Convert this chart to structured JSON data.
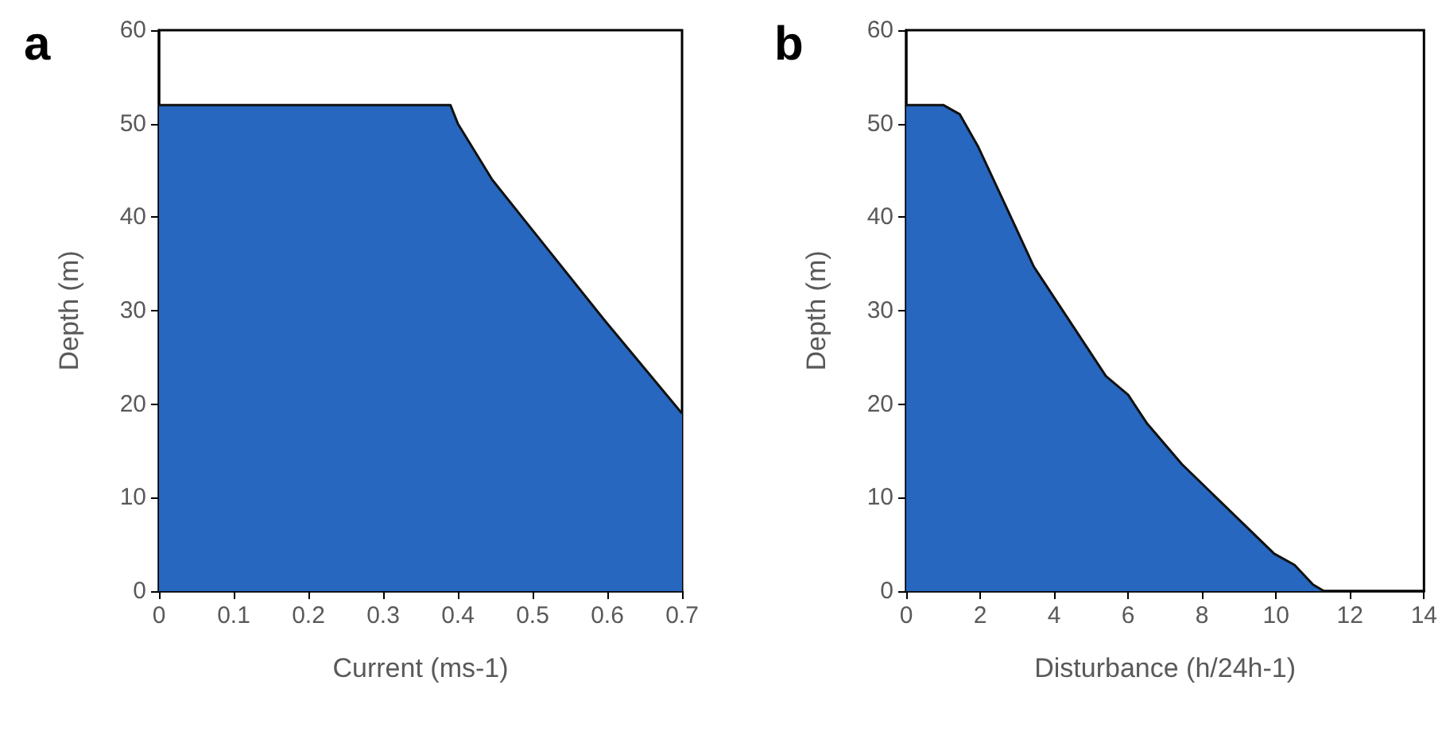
{
  "chart_data": [
    {
      "type": "area",
      "title": "a",
      "xlabel": "Current (ms-1)",
      "ylabel": "Depth (m)",
      "xlim": [
        0,
        0.7
      ],
      "xticks": [
        0,
        0.1,
        0.2,
        0.3,
        0.4,
        0.5,
        0.6,
        0.7
      ],
      "ylim": [
        0,
        60
      ],
      "yticks": [
        0,
        10,
        20,
        30,
        40,
        50,
        60
      ],
      "marker": "none",
      "series": [
        {
          "color": "#2767bf",
          "x": [
            0,
            0.39,
            0.4,
            0.446,
            0.496,
            0.596,
            0.7
          ],
          "values": [
            52,
            52,
            50,
            44,
            39,
            29,
            19
          ]
        }
      ]
    },
    {
      "type": "area",
      "title": "b",
      "xlabel": "Disturbance (h/24h-1)",
      "ylabel": "Depth (m)",
      "xlim": [
        0,
        14
      ],
      "xticks": [
        0,
        2,
        4,
        6,
        8,
        10,
        12,
        14
      ],
      "ylim": [
        0,
        60
      ],
      "yticks": [
        0,
        10,
        20,
        30,
        40,
        50,
        60
      ],
      "marker": "none",
      "series": [
        {
          "color": "#2767bf",
          "x": [
            0,
            1,
            1.45,
            1.95,
            2.95,
            3.45,
            5.4,
            6,
            6.5,
            7.45,
            9.95,
            10.5,
            11,
            11.3
          ],
          "values": [
            52,
            52,
            51,
            47.5,
            39,
            34.7,
            23,
            21,
            18,
            13.6,
            4,
            2.8,
            0.7,
            0
          ]
        }
      ]
    }
  ]
}
